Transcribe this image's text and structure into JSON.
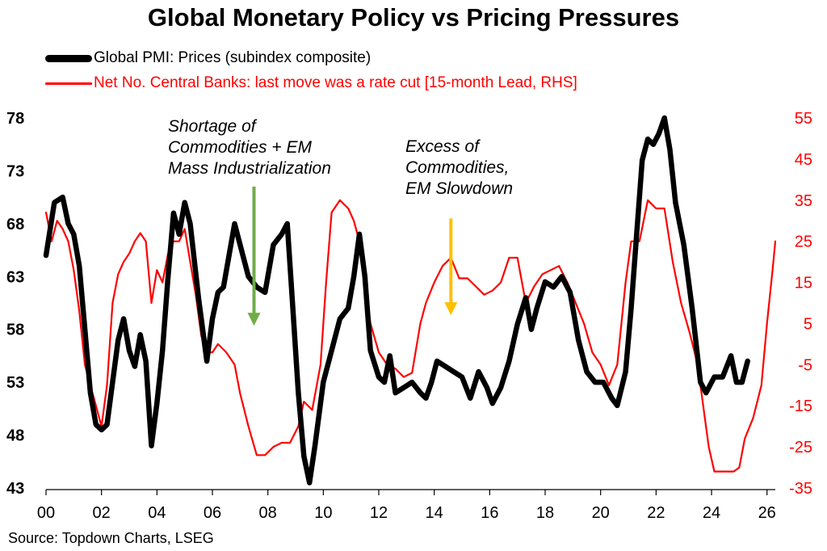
{
  "chart_data": {
    "type": "line",
    "title": "Global Monetary Policy vs Pricing Pressures",
    "source": "Source: Topdown Charts, LSEG",
    "x_axis": {
      "ticks": [
        0,
        2,
        4,
        6,
        8,
        10,
        12,
        14,
        16,
        18,
        20,
        22,
        24,
        26
      ],
      "tick_labels": [
        "00",
        "02",
        "04",
        "06",
        "08",
        "10",
        "12",
        "14",
        "16",
        "18",
        "20",
        "22",
        "24",
        "26"
      ],
      "range": [
        0,
        26.3
      ]
    },
    "y_left": {
      "range": [
        43,
        78
      ],
      "ticks": [
        43,
        48,
        53,
        58,
        63,
        68,
        73,
        78
      ],
      "tick_labels": [
        "43",
        "48",
        "53",
        "58",
        "63",
        "68",
        "73",
        "78"
      ]
    },
    "y_right": {
      "range": [
        -35,
        55
      ],
      "ticks": [
        -35,
        -25,
        -15,
        -5,
        5,
        15,
        25,
        35,
        45,
        55
      ],
      "tick_labels": [
        "-35",
        "-25",
        "-15",
        "-5",
        "5",
        "15",
        "25",
        "35",
        "45",
        "55"
      ]
    },
    "grid": false,
    "legend_position": "top-left",
    "series": [
      {
        "name": "Global PMI: Prices (subindex composite)",
        "axis": "left",
        "color": "#000000",
        "points": [
          [
            0.0,
            65.0
          ],
          [
            0.3,
            70.0
          ],
          [
            0.6,
            70.5
          ],
          [
            0.8,
            68.0
          ],
          [
            1.0,
            67.0
          ],
          [
            1.2,
            64.0
          ],
          [
            1.4,
            58.0
          ],
          [
            1.6,
            52.0
          ],
          [
            1.8,
            49.0
          ],
          [
            2.0,
            48.5
          ],
          [
            2.2,
            49.0
          ],
          [
            2.4,
            53.0
          ],
          [
            2.6,
            57.0
          ],
          [
            2.8,
            59.0
          ],
          [
            3.0,
            56.0
          ],
          [
            3.2,
            54.5
          ],
          [
            3.4,
            57.5
          ],
          [
            3.6,
            55.0
          ],
          [
            3.8,
            47.0
          ],
          [
            4.0,
            51.0
          ],
          [
            4.2,
            56.0
          ],
          [
            4.4,
            63.0
          ],
          [
            4.6,
            69.0
          ],
          [
            4.8,
            67.0
          ],
          [
            5.0,
            70.0
          ],
          [
            5.2,
            68.0
          ],
          [
            5.5,
            61.0
          ],
          [
            5.8,
            55.0
          ],
          [
            6.0,
            59.0
          ],
          [
            6.2,
            61.5
          ],
          [
            6.4,
            62.0
          ],
          [
            6.6,
            65.0
          ],
          [
            6.8,
            68.0
          ],
          [
            7.0,
            66.0
          ],
          [
            7.3,
            63.0
          ],
          [
            7.6,
            62.0
          ],
          [
            7.9,
            61.5
          ],
          [
            8.2,
            66.0
          ],
          [
            8.5,
            67.0
          ],
          [
            8.7,
            68.0
          ],
          [
            8.9,
            60.0
          ],
          [
            9.1,
            52.0
          ],
          [
            9.3,
            46.0
          ],
          [
            9.5,
            43.5
          ],
          [
            9.7,
            47.0
          ],
          [
            10.0,
            53.0
          ],
          [
            10.3,
            56.0
          ],
          [
            10.6,
            59.0
          ],
          [
            10.9,
            60.0
          ],
          [
            11.1,
            63.0
          ],
          [
            11.3,
            67.0
          ],
          [
            11.5,
            63.0
          ],
          [
            11.7,
            56.0
          ],
          [
            12.0,
            53.5
          ],
          [
            12.2,
            53.0
          ],
          [
            12.4,
            55.5
          ],
          [
            12.6,
            52.0
          ],
          [
            12.9,
            52.5
          ],
          [
            13.2,
            53.0
          ],
          [
            13.5,
            52.0
          ],
          [
            13.7,
            51.5
          ],
          [
            13.9,
            53.0
          ],
          [
            14.1,
            55.0
          ],
          [
            14.4,
            54.5
          ],
          [
            14.7,
            54.0
          ],
          [
            15.0,
            53.5
          ],
          [
            15.3,
            51.5
          ],
          [
            15.6,
            54.0
          ],
          [
            15.9,
            52.5
          ],
          [
            16.1,
            51.0
          ],
          [
            16.4,
            52.5
          ],
          [
            16.7,
            55.0
          ],
          [
            17.0,
            58.5
          ],
          [
            17.3,
            61.0
          ],
          [
            17.5,
            58.0
          ],
          [
            17.7,
            60.0
          ],
          [
            18.0,
            62.5
          ],
          [
            18.3,
            62.0
          ],
          [
            18.6,
            63.0
          ],
          [
            18.9,
            61.5
          ],
          [
            19.2,
            57.0
          ],
          [
            19.5,
            54.0
          ],
          [
            19.8,
            53.0
          ],
          [
            20.1,
            53.0
          ],
          [
            20.4,
            51.5
          ],
          [
            20.6,
            50.8
          ],
          [
            20.9,
            54.0
          ],
          [
            21.1,
            60.0
          ],
          [
            21.3,
            67.0
          ],
          [
            21.5,
            74.0
          ],
          [
            21.7,
            76.0
          ],
          [
            21.9,
            75.5
          ],
          [
            22.1,
            76.5
          ],
          [
            22.3,
            78.0
          ],
          [
            22.5,
            75.0
          ],
          [
            22.7,
            70.0
          ],
          [
            23.0,
            66.0
          ],
          [
            23.3,
            60.0
          ],
          [
            23.6,
            53.0
          ],
          [
            23.8,
            52.0
          ],
          [
            24.1,
            53.5
          ],
          [
            24.4,
            53.5
          ],
          [
            24.7,
            55.5
          ],
          [
            24.9,
            53.0
          ],
          [
            25.1,
            53.0
          ],
          [
            25.3,
            55.0
          ]
        ]
      },
      {
        "name": "Net No. Central Banks: last move was a rate cut  [15-month Lead, RHS]",
        "axis": "right",
        "color": "#ff0000",
        "points": [
          [
            0.0,
            32
          ],
          [
            0.2,
            25
          ],
          [
            0.4,
            30
          ],
          [
            0.6,
            28
          ],
          [
            0.8,
            25
          ],
          [
            1.0,
            18
          ],
          [
            1.2,
            8
          ],
          [
            1.4,
            -5
          ],
          [
            1.6,
            -10
          ],
          [
            1.8,
            -15
          ],
          [
            2.0,
            -20
          ],
          [
            2.2,
            -10
          ],
          [
            2.4,
            10
          ],
          [
            2.6,
            17
          ],
          [
            2.8,
            20
          ],
          [
            3.0,
            22
          ],
          [
            3.2,
            25
          ],
          [
            3.4,
            27
          ],
          [
            3.6,
            25
          ],
          [
            3.8,
            10
          ],
          [
            4.0,
            18
          ],
          [
            4.2,
            15
          ],
          [
            4.4,
            22
          ],
          [
            4.6,
            25
          ],
          [
            4.8,
            25
          ],
          [
            5.0,
            28
          ],
          [
            5.2,
            20
          ],
          [
            5.4,
            12
          ],
          [
            5.6,
            2
          ],
          [
            5.8,
            -2
          ],
          [
            6.0,
            -2
          ],
          [
            6.2,
            0
          ],
          [
            6.5,
            -2
          ],
          [
            6.8,
            -5
          ],
          [
            7.0,
            -12
          ],
          [
            7.3,
            -20
          ],
          [
            7.6,
            -27
          ],
          [
            7.9,
            -27
          ],
          [
            8.2,
            -25
          ],
          [
            8.5,
            -24
          ],
          [
            8.8,
            -24
          ],
          [
            9.1,
            -20
          ],
          [
            9.3,
            -14
          ],
          [
            9.6,
            -16
          ],
          [
            9.9,
            -5
          ],
          [
            10.1,
            15
          ],
          [
            10.3,
            32
          ],
          [
            10.6,
            35
          ],
          [
            10.9,
            33
          ],
          [
            11.1,
            30
          ],
          [
            11.3,
            25
          ],
          [
            11.5,
            15
          ],
          [
            11.7,
            5
          ],
          [
            12.0,
            -2
          ],
          [
            12.3,
            -5
          ],
          [
            12.6,
            -6
          ],
          [
            12.9,
            -8
          ],
          [
            13.2,
            -7
          ],
          [
            13.5,
            5
          ],
          [
            13.7,
            10
          ],
          [
            14.0,
            15
          ],
          [
            14.3,
            19
          ],
          [
            14.6,
            21
          ],
          [
            14.9,
            16
          ],
          [
            15.2,
            16
          ],
          [
            15.5,
            14
          ],
          [
            15.8,
            12
          ],
          [
            16.1,
            13
          ],
          [
            16.4,
            15
          ],
          [
            16.7,
            21
          ],
          [
            17.0,
            21
          ],
          [
            17.3,
            10
          ],
          [
            17.6,
            14
          ],
          [
            17.9,
            17
          ],
          [
            18.2,
            18
          ],
          [
            18.5,
            19
          ],
          [
            18.8,
            15
          ],
          [
            19.1,
            10
          ],
          [
            19.4,
            5
          ],
          [
            19.7,
            -2
          ],
          [
            20.0,
            -5
          ],
          [
            20.3,
            -10
          ],
          [
            20.6,
            -5
          ],
          [
            20.9,
            15
          ],
          [
            21.1,
            25
          ],
          [
            21.4,
            25
          ],
          [
            21.7,
            35
          ],
          [
            22.0,
            33
          ],
          [
            22.3,
            33
          ],
          [
            22.6,
            20
          ],
          [
            22.9,
            10
          ],
          [
            23.2,
            3
          ],
          [
            23.5,
            -5
          ],
          [
            23.7,
            -15
          ],
          [
            23.9,
            -25
          ],
          [
            24.1,
            -31
          ],
          [
            24.5,
            -31
          ],
          [
            24.8,
            -31
          ],
          [
            25.0,
            -30
          ],
          [
            25.2,
            -23
          ],
          [
            25.5,
            -18
          ],
          [
            25.8,
            -10
          ],
          [
            26.0,
            5
          ],
          [
            26.2,
            18
          ],
          [
            26.3,
            25
          ]
        ]
      }
    ],
    "annotations": [
      {
        "lines": [
          "Shortage of",
          "Commodities + EM",
          "Mass Industrialization"
        ],
        "color": "#70ad47",
        "arrow_x": 7.5,
        "arrow_from": 71.5,
        "arrow_to": 58.5
      },
      {
        "lines": [
          "Excess of",
          "Commodities,",
          "EM Slowdown"
        ],
        "color": "#ffc000",
        "arrow_x": 14.6,
        "arrow_from": 68.5,
        "arrow_to": 59.5
      }
    ]
  }
}
